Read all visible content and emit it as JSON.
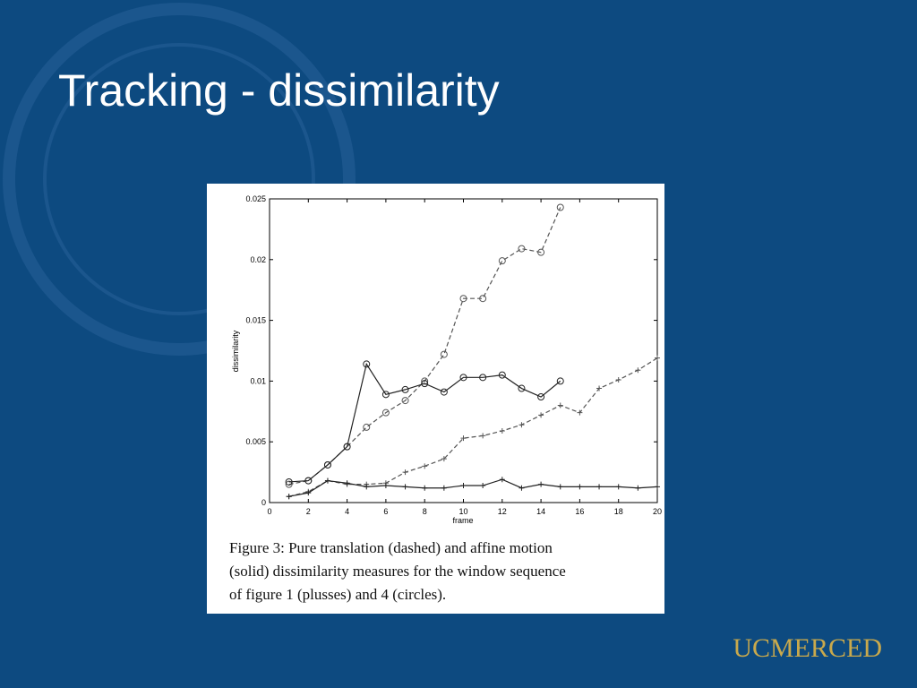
{
  "slide": {
    "title": "Tracking - dissimilarity",
    "logo": "UCMERCED"
  },
  "chart_data": {
    "type": "line",
    "xlabel": "frame",
    "ylabel": "dissimilarity",
    "xlim": [
      0,
      20
    ],
    "xticks": [
      0,
      2,
      4,
      6,
      8,
      10,
      12,
      14,
      16,
      18,
      20
    ],
    "ylim": [
      0,
      0.025
    ],
    "yticks": [
      0,
      0.005,
      0.01,
      0.015,
      0.02,
      0.025
    ],
    "caption": [
      "Figure 3: Pure translation (dashed) and affine motion",
      "(solid) dissimilarity measures for the window sequence",
      "of figure 1 (plusses) and 4 (circles)."
    ],
    "series": [
      {
        "color": "#555555",
        "dash": true,
        "marker": "circle",
        "x": [
          1,
          2,
          3,
          4,
          5,
          6,
          7,
          8,
          9,
          10,
          11,
          12,
          13,
          14,
          15
        ],
        "values": [
          0.0015,
          0.0018,
          0.0031,
          0.0046,
          0.0062,
          0.0074,
          0.0084,
          0.01,
          0.0122,
          0.0168,
          0.0168,
          0.0199,
          0.0209,
          0.0206,
          0.0243
        ]
      },
      {
        "color": "#222222",
        "dash": false,
        "marker": "circle",
        "x": [
          1,
          2,
          3,
          4,
          5,
          6,
          7,
          8,
          9,
          10,
          11,
          12,
          13,
          14,
          15
        ],
        "values": [
          0.0017,
          0.0018,
          0.0031,
          0.0046,
          0.0114,
          0.0089,
          0.0093,
          0.0098,
          0.0091,
          0.0103,
          0.0103,
          0.0105,
          0.0094,
          0.0087,
          0.01
        ]
      },
      {
        "color": "#555555",
        "dash": true,
        "marker": "plus",
        "x": [
          1,
          2,
          3,
          4,
          5,
          6,
          7,
          8,
          9,
          10,
          11,
          12,
          13,
          14,
          15,
          16,
          17,
          18,
          19,
          20
        ],
        "values": [
          0.0005,
          0.0009,
          0.0018,
          0.0015,
          0.0015,
          0.0016,
          0.0025,
          0.003,
          0.0036,
          0.0053,
          0.0055,
          0.0059,
          0.0064,
          0.0072,
          0.008,
          0.0074,
          0.0094,
          0.0101,
          0.0109,
          0.0119
        ]
      },
      {
        "color": "#222222",
        "dash": false,
        "marker": "plus",
        "x": [
          1,
          2,
          3,
          4,
          5,
          6,
          7,
          8,
          9,
          10,
          11,
          12,
          13,
          14,
          15,
          16,
          17,
          18,
          19,
          20
        ],
        "values": [
          0.0005,
          0.0008,
          0.0018,
          0.0016,
          0.0013,
          0.0014,
          0.0013,
          0.0012,
          0.0012,
          0.0014,
          0.0014,
          0.0019,
          0.0012,
          0.0015,
          0.0013,
          0.0013,
          0.0013,
          0.0013,
          0.0012,
          0.0013
        ]
      }
    ]
  }
}
